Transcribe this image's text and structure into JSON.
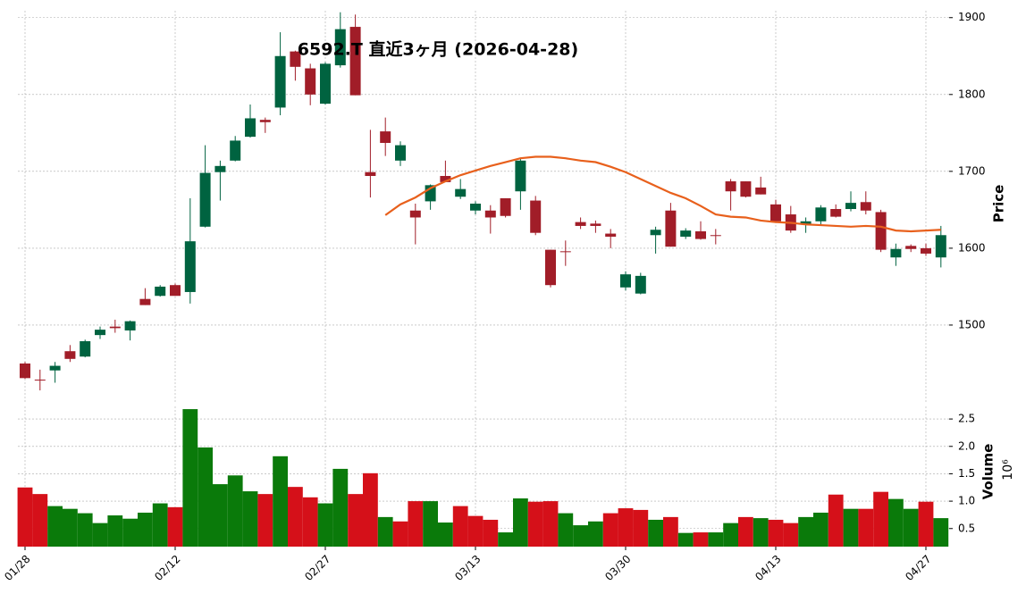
{
  "chart_data": {
    "type": "candlestick",
    "title": "6592.T 直近3ヶ月 (2026-04-28)",
    "y_label": "Price",
    "y2_label": "Volume",
    "y2_offset_label": "10⁶",
    "categories": [
      "01/28",
      null,
      null,
      null,
      null,
      null,
      null,
      null,
      null,
      null,
      "02/12",
      null,
      null,
      null,
      null,
      null,
      null,
      null,
      null,
      null,
      "02/27",
      null,
      null,
      null,
      null,
      null,
      null,
      null,
      null,
      null,
      "03/13",
      null,
      null,
      null,
      null,
      null,
      null,
      null,
      null,
      null,
      "03/30",
      null,
      null,
      null,
      null,
      null,
      null,
      null,
      null,
      null,
      "04/13",
      null,
      null,
      null,
      null,
      null,
      null,
      null,
      null,
      null,
      "04/27",
      null
    ],
    "open": [
      1450,
      1429,
      1441,
      1466,
      1459,
      1487,
      1498,
      1493,
      1534,
      1538,
      1552,
      1543,
      1628,
      1699,
      1714,
      1745,
      1767,
      1783,
      1856,
      1834,
      1788,
      1838,
      1888,
      1699,
      1752,
      1714,
      1649,
      1661,
      1694,
      1667,
      1649,
      1649,
      1665,
      1674,
      1662,
      1598,
      1596,
      1634,
      1632,
      1619,
      1549,
      1541,
      1617,
      1649,
      1615,
      1622,
      1617,
      1687,
      1687,
      1679,
      1657,
      1644,
      1631,
      1635,
      1651,
      1651,
      1660,
      1647,
      1588,
      1603,
      1600,
      1588
    ],
    "high": [
      1452,
      1442,
      1452,
      1474,
      1481,
      1498,
      1507,
      1506,
      1548,
      1552,
      1554,
      1665,
      1734,
      1714,
      1746,
      1787,
      1770,
      1881,
      1857,
      1840,
      1842,
      1907,
      1904,
      1754,
      1770,
      1739,
      1658,
      1683,
      1714,
      1690,
      1661,
      1656,
      1665,
      1716,
      1668,
      1598,
      1610,
      1640,
      1636,
      1625,
      1570,
      1568,
      1628,
      1659,
      1626,
      1635,
      1625,
      1690,
      1687,
      1693,
      1663,
      1655,
      1640,
      1656,
      1657,
      1674,
      1674,
      1650,
      1606,
      1605,
      1606,
      1629
    ],
    "low": [
      1430,
      1415,
      1425,
      1452,
      1458,
      1482,
      1490,
      1480,
      1526,
      1537,
      1538,
      1528,
      1627,
      1662,
      1713,
      1744,
      1750,
      1773,
      1818,
      1786,
      1787,
      1835,
      1799,
      1666,
      1720,
      1707,
      1605,
      1650,
      1686,
      1664,
      1644,
      1619,
      1640,
      1650,
      1617,
      1549,
      1577,
      1625,
      1620,
      1600,
      1545,
      1540,
      1593,
      1602,
      1612,
      1611,
      1605,
      1649,
      1666,
      1670,
      1634,
      1620,
      1620,
      1630,
      1640,
      1648,
      1644,
      1595,
      1577,
      1595,
      1590,
      1575
    ],
    "close": [
      1431,
      1428,
      1447,
      1456,
      1479,
      1494,
      1496,
      1505,
      1526,
      1550,
      1538,
      1609,
      1698,
      1707,
      1740,
      1769,
      1764,
      1850,
      1836,
      1800,
      1840,
      1885,
      1799,
      1694,
      1737,
      1734,
      1640,
      1682,
      1686,
      1677,
      1658,
      1640,
      1642,
      1714,
      1620,
      1552,
      1595,
      1629,
      1629,
      1615,
      1566,
      1564,
      1624,
      1602,
      1623,
      1612,
      1616,
      1674,
      1667,
      1670,
      1635,
      1623,
      1635,
      1653,
      1641,
      1659,
      1649,
      1598,
      1599,
      1599,
      1593,
      1617
    ],
    "volume": [
      1.25,
      1.13,
      0.91,
      0.86,
      0.78,
      0.6,
      0.74,
      0.68,
      0.79,
      0.96,
      0.89,
      2.68,
      1.98,
      1.31,
      1.47,
      1.18,
      1.13,
      1.82,
      1.26,
      1.07,
      0.96,
      1.59,
      1.13,
      1.51,
      0.71,
      0.63,
      1.0,
      1.0,
      0.61,
      0.91,
      0.73,
      0.66,
      0.43,
      1.05,
      0.99,
      1.0,
      0.78,
      0.56,
      0.63,
      0.78,
      0.87,
      0.84,
      0.66,
      0.71,
      0.42,
      0.43,
      0.43,
      0.6,
      0.71,
      0.69,
      0.66,
      0.6,
      0.71,
      0.79,
      1.12,
      0.86,
      0.86,
      1.17,
      1.04,
      0.86,
      0.99,
      0.69
    ],
    "moving_average": {
      "color": "#e8601c",
      "values": [
        null,
        null,
        null,
        null,
        null,
        null,
        null,
        null,
        null,
        null,
        null,
        null,
        null,
        null,
        null,
        null,
        null,
        null,
        null,
        null,
        null,
        null,
        null,
        null,
        1643,
        1657,
        1666,
        1678,
        1687,
        1695,
        1701,
        1707,
        1712,
        1717,
        1719,
        1719,
        1717,
        1714,
        1712,
        1706,
        1699,
        1690,
        1681,
        1672,
        1665,
        1655,
        1644,
        1641,
        1640,
        1636,
        1634,
        1633,
        1631,
        1630,
        1629,
        1628,
        1629,
        1628,
        1623,
        1622,
        1623,
        1624
      ]
    },
    "colors": {
      "up": "#006340",
      "down": "#a11d28",
      "volume_up": "#0a7a0a",
      "volume_down": "#d51019"
    },
    "ylim": [
      1400,
      1909
    ],
    "yticks": [
      1500,
      1600,
      1700,
      1800,
      1900
    ],
    "y2lim": [
      0.17,
      2.73
    ],
    "y2ticks": [
      0.5,
      {
        "value": 1,
        "label": "1.0"
      },
      1.5,
      {
        "value": 2,
        "label": "2.0"
      },
      2.5
    ],
    "grid": true
  }
}
